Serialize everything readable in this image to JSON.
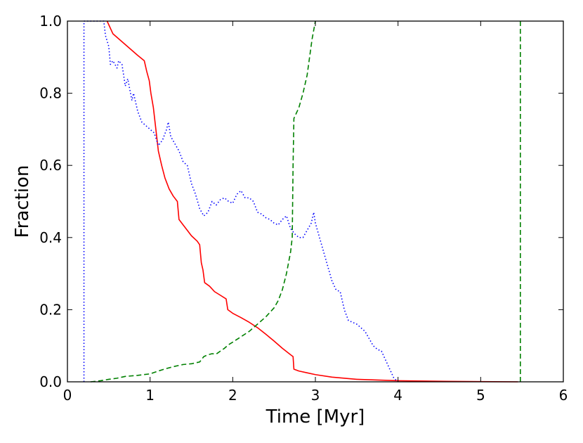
{
  "chart_data": {
    "type": "line",
    "xlabel": "Time [Myr]",
    "ylabel": "Fraction",
    "xlim": [
      0,
      6
    ],
    "ylim": [
      0,
      1
    ],
    "xticks": [
      0,
      1,
      2,
      3,
      4,
      5,
      6
    ],
    "yticks": [
      0.0,
      0.2,
      0.4,
      0.6,
      0.8,
      1.0
    ],
    "xtick_labels": [
      "0",
      "1",
      "2",
      "3",
      "4",
      "5",
      "6"
    ],
    "ytick_labels": [
      "0.0",
      "0.2",
      "0.4",
      "0.6",
      "0.8",
      "1.0"
    ],
    "grid": false,
    "series": [
      {
        "color": "#ff0000",
        "style": "solid",
        "points": [
          [
            0.48,
            1.0
          ],
          [
            0.55,
            0.965
          ],
          [
            0.65,
            0.945
          ],
          [
            0.75,
            0.925
          ],
          [
            0.85,
            0.905
          ],
          [
            0.93,
            0.89
          ],
          [
            0.96,
            0.86
          ],
          [
            0.99,
            0.835
          ],
          [
            1.01,
            0.8
          ],
          [
            1.04,
            0.76
          ],
          [
            1.07,
            0.7
          ],
          [
            1.1,
            0.64
          ],
          [
            1.14,
            0.6
          ],
          [
            1.18,
            0.565
          ],
          [
            1.23,
            0.535
          ],
          [
            1.28,
            0.515
          ],
          [
            1.33,
            0.5
          ],
          [
            1.35,
            0.45
          ],
          [
            1.4,
            0.435
          ],
          [
            1.45,
            0.42
          ],
          [
            1.5,
            0.405
          ],
          [
            1.57,
            0.39
          ],
          [
            1.6,
            0.38
          ],
          [
            1.62,
            0.33
          ],
          [
            1.64,
            0.31
          ],
          [
            1.66,
            0.275
          ],
          [
            1.72,
            0.265
          ],
          [
            1.78,
            0.25
          ],
          [
            1.85,
            0.24
          ],
          [
            1.92,
            0.23
          ],
          [
            1.94,
            0.2
          ],
          [
            2.0,
            0.19
          ],
          [
            2.1,
            0.178
          ],
          [
            2.2,
            0.165
          ],
          [
            2.3,
            0.15
          ],
          [
            2.4,
            0.132
          ],
          [
            2.5,
            0.113
          ],
          [
            2.6,
            0.093
          ],
          [
            2.7,
            0.075
          ],
          [
            2.73,
            0.07
          ],
          [
            2.74,
            0.035
          ],
          [
            2.8,
            0.03
          ],
          [
            2.9,
            0.025
          ],
          [
            3.0,
            0.02
          ],
          [
            3.2,
            0.013
          ],
          [
            3.5,
            0.007
          ],
          [
            4.0,
            0.003
          ],
          [
            4.5,
            0.0015
          ],
          [
            5.0,
            0.0007
          ],
          [
            5.45,
            0.0
          ]
        ]
      },
      {
        "color": "#0000ff",
        "style": "dotted",
        "points": [
          [
            0.2,
            0.0
          ],
          [
            0.2,
            1.0
          ],
          [
            0.44,
            1.0
          ],
          [
            0.46,
            0.96
          ],
          [
            0.5,
            0.93
          ],
          [
            0.52,
            0.88
          ],
          [
            0.55,
            0.89
          ],
          [
            0.6,
            0.87
          ],
          [
            0.62,
            0.89
          ],
          [
            0.66,
            0.88
          ],
          [
            0.7,
            0.82
          ],
          [
            0.73,
            0.84
          ],
          [
            0.78,
            0.78
          ],
          [
            0.8,
            0.8
          ],
          [
            0.85,
            0.75
          ],
          [
            0.9,
            0.72
          ],
          [
            0.95,
            0.71
          ],
          [
            1.0,
            0.7
          ],
          [
            1.05,
            0.69
          ],
          [
            1.1,
            0.655
          ],
          [
            1.15,
            0.67
          ],
          [
            1.2,
            0.7
          ],
          [
            1.22,
            0.72
          ],
          [
            1.25,
            0.68
          ],
          [
            1.3,
            0.66
          ],
          [
            1.35,
            0.64
          ],
          [
            1.4,
            0.61
          ],
          [
            1.45,
            0.6
          ],
          [
            1.5,
            0.55
          ],
          [
            1.55,
            0.52
          ],
          [
            1.6,
            0.48
          ],
          [
            1.65,
            0.46
          ],
          [
            1.7,
            0.47
          ],
          [
            1.75,
            0.5
          ],
          [
            1.8,
            0.49
          ],
          [
            1.85,
            0.505
          ],
          [
            1.9,
            0.51
          ],
          [
            1.95,
            0.5
          ],
          [
            2.0,
            0.495
          ],
          [
            2.05,
            0.52
          ],
          [
            2.1,
            0.53
          ],
          [
            2.15,
            0.51
          ],
          [
            2.2,
            0.51
          ],
          [
            2.25,
            0.5
          ],
          [
            2.3,
            0.47
          ],
          [
            2.35,
            0.465
          ],
          [
            2.4,
            0.455
          ],
          [
            2.45,
            0.45
          ],
          [
            2.5,
            0.44
          ],
          [
            2.55,
            0.435
          ],
          [
            2.6,
            0.45
          ],
          [
            2.65,
            0.46
          ],
          [
            2.7,
            0.425
          ],
          [
            2.75,
            0.41
          ],
          [
            2.8,
            0.4
          ],
          [
            2.85,
            0.4
          ],
          [
            2.9,
            0.42
          ],
          [
            2.95,
            0.44
          ],
          [
            2.98,
            0.47
          ],
          [
            3.0,
            0.44
          ],
          [
            3.05,
            0.4
          ],
          [
            3.1,
            0.36
          ],
          [
            3.15,
            0.32
          ],
          [
            3.2,
            0.28
          ],
          [
            3.25,
            0.255
          ],
          [
            3.3,
            0.25
          ],
          [
            3.35,
            0.2
          ],
          [
            3.4,
            0.17
          ],
          [
            3.45,
            0.165
          ],
          [
            3.5,
            0.16
          ],
          [
            3.55,
            0.15
          ],
          [
            3.6,
            0.14
          ],
          [
            3.65,
            0.12
          ],
          [
            3.7,
            0.1
          ],
          [
            3.75,
            0.09
          ],
          [
            3.8,
            0.085
          ],
          [
            3.85,
            0.06
          ],
          [
            3.9,
            0.035
          ],
          [
            3.95,
            0.01
          ],
          [
            4.0,
            0.0
          ]
        ]
      },
      {
        "color": "#008000",
        "style": "dashed",
        "points": [
          [
            0.28,
            0.0
          ],
          [
            0.4,
            0.003
          ],
          [
            0.5,
            0.007
          ],
          [
            0.6,
            0.01
          ],
          [
            0.7,
            0.015
          ],
          [
            0.85,
            0.018
          ],
          [
            1.0,
            0.022
          ],
          [
            1.1,
            0.03
          ],
          [
            1.2,
            0.037
          ],
          [
            1.3,
            0.043
          ],
          [
            1.4,
            0.048
          ],
          [
            1.5,
            0.05
          ],
          [
            1.6,
            0.055
          ],
          [
            1.65,
            0.07
          ],
          [
            1.7,
            0.075
          ],
          [
            1.75,
            0.078
          ],
          [
            1.8,
            0.077
          ],
          [
            1.85,
            0.085
          ],
          [
            1.9,
            0.093
          ],
          [
            1.95,
            0.103
          ],
          [
            2.0,
            0.11
          ],
          [
            2.1,
            0.125
          ],
          [
            2.2,
            0.14
          ],
          [
            2.3,
            0.16
          ],
          [
            2.4,
            0.18
          ],
          [
            2.5,
            0.205
          ],
          [
            2.55,
            0.225
          ],
          [
            2.6,
            0.255
          ],
          [
            2.65,
            0.3
          ],
          [
            2.7,
            0.36
          ],
          [
            2.72,
            0.4
          ],
          [
            2.73,
            0.6
          ],
          [
            2.74,
            0.73
          ],
          [
            2.8,
            0.76
          ],
          [
            2.85,
            0.8
          ],
          [
            2.9,
            0.85
          ],
          [
            2.93,
            0.9
          ],
          [
            2.96,
            0.95
          ],
          [
            3.0,
            1.0
          ]
        ]
      },
      {
        "color": "#008000",
        "style": "dashed",
        "points": [
          [
            5.48,
            0.0
          ],
          [
            5.48,
            1.0
          ]
        ]
      }
    ]
  }
}
